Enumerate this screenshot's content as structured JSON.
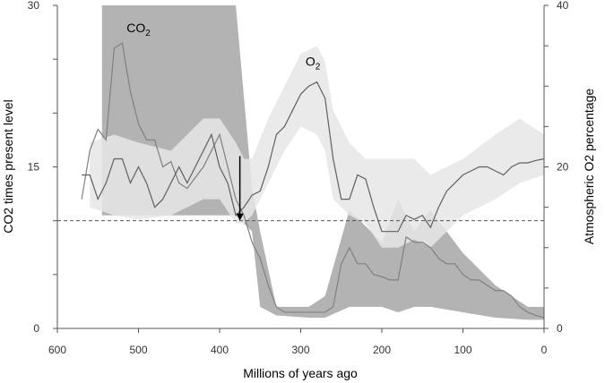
{
  "chart_data": {
    "type": "line",
    "title": "",
    "xlabel": "Millions of years ago",
    "ylabel_left": "CO2 times present level",
    "ylabel_right": "Atmospheric O2 percentage",
    "xlim": [
      600,
      0
    ],
    "ylim_left": [
      0,
      30
    ],
    "ylim_right": [
      0,
      40
    ],
    "x_ticks": [
      600,
      500,
      400,
      300,
      200,
      100,
      0
    ],
    "y_left_ticks": [
      0,
      15,
      30
    ],
    "y_right_ticks": [
      0,
      20,
      40
    ],
    "reference_line": {
      "axis": "left",
      "value": 10,
      "style": "dashed"
    },
    "arrow": {
      "x": 375,
      "from_y": 16,
      "to_y": 10
    },
    "grid": false,
    "series": [
      {
        "name": "CO2",
        "axis": "left",
        "color": "#808080",
        "band_color": "#b3b3b3",
        "label_at": {
          "x": 500,
          "y": 27.5
        },
        "x": [
          570,
          560,
          550,
          540,
          530,
          520,
          510,
          500,
          490,
          480,
          470,
          460,
          450,
          440,
          430,
          420,
          410,
          400,
          390,
          380,
          370,
          360,
          350,
          340,
          330,
          320,
          310,
          300,
          290,
          280,
          270,
          260,
          250,
          240,
          230,
          220,
          210,
          200,
          190,
          180,
          170,
          160,
          150,
          140,
          130,
          120,
          110,
          100,
          90,
          80,
          70,
          60,
          50,
          40,
          30,
          20,
          10,
          0
        ],
        "values": [
          12,
          16.5,
          18.5,
          17.5,
          26,
          26.5,
          22,
          19,
          17.5,
          17.5,
          15,
          15.5,
          13.5,
          13,
          14,
          15,
          16.5,
          18,
          15,
          12,
          10.5,
          8,
          6.5,
          4,
          2,
          1.5,
          1.5,
          1.5,
          1.5,
          1.5,
          1.5,
          2,
          6,
          7.5,
          6,
          6,
          5,
          4.8,
          4.5,
          4.5,
          8.5,
          8,
          8,
          7.5,
          6.5,
          6,
          6,
          5,
          4.5,
          4.5,
          4,
          3.5,
          3.5,
          3,
          2,
          1.5,
          1.2,
          1
        ],
        "band_x": [
          545,
          380,
          360,
          350,
          330,
          290,
          270,
          240,
          200,
          180,
          160,
          140,
          100,
          60,
          20,
          0
        ],
        "band_upper": [
          30,
          30,
          13,
          9,
          2,
          2,
          3,
          11,
          8,
          12,
          9,
          11,
          7,
          4,
          2,
          2
        ],
        "band_lower": [
          10.5,
          10.5,
          9,
          2,
          1.2,
          1,
          1,
          2,
          2,
          1.5,
          2,
          2,
          1.5,
          1,
          0.8,
          0.8
        ]
      },
      {
        "name": "O2",
        "axis": "right",
        "color": "#606060",
        "band_color": "#e6e6e6",
        "label_at": {
          "x": 285,
          "y": 32.5
        },
        "x": [
          570,
          560,
          550,
          540,
          530,
          520,
          510,
          500,
          490,
          480,
          470,
          460,
          450,
          440,
          430,
          420,
          410,
          400,
          390,
          380,
          370,
          360,
          350,
          340,
          330,
          320,
          310,
          300,
          290,
          280,
          270,
          260,
          250,
          240,
          230,
          220,
          210,
          200,
          190,
          180,
          170,
          160,
          150,
          140,
          130,
          120,
          110,
          100,
          90,
          80,
          70,
          60,
          50,
          40,
          30,
          20,
          10,
          0
        ],
        "values": [
          19,
          19,
          16,
          18,
          21,
          21,
          18,
          20,
          18,
          15,
          16,
          18,
          20,
          18,
          20,
          22,
          24,
          20,
          18,
          14,
          15,
          16.5,
          17,
          20,
          24,
          25,
          27,
          29,
          30,
          30.5,
          28.5,
          21,
          16,
          16,
          19,
          18.5,
          15,
          12,
          12,
          12,
          14,
          13.5,
          14,
          12.5,
          15,
          17,
          18,
          19,
          19.5,
          20,
          20,
          19.5,
          19,
          20,
          20.5,
          20.5,
          20.8,
          21
        ],
        "band_x": [
          560,
          530,
          500,
          460,
          440,
          420,
          400,
          380,
          370,
          360,
          340,
          320,
          300,
          280,
          270,
          260,
          240,
          220,
          200,
          180,
          160,
          140,
          120,
          100,
          60,
          30,
          0
        ],
        "band_upper": [
          23,
          24,
          23,
          22,
          24,
          26,
          26,
          23,
          21,
          21,
          26,
          30,
          34,
          35,
          33,
          27,
          23,
          21,
          21,
          21,
          21,
          19,
          20,
          21,
          24,
          26,
          24
        ],
        "band_lower": [
          15,
          14,
          13.5,
          14,
          15,
          16,
          16,
          13,
          13,
          14,
          18,
          22,
          25,
          24,
          22,
          16,
          14,
          13,
          10,
          10,
          11,
          10,
          12,
          14,
          16,
          18,
          19
        ]
      }
    ]
  }
}
